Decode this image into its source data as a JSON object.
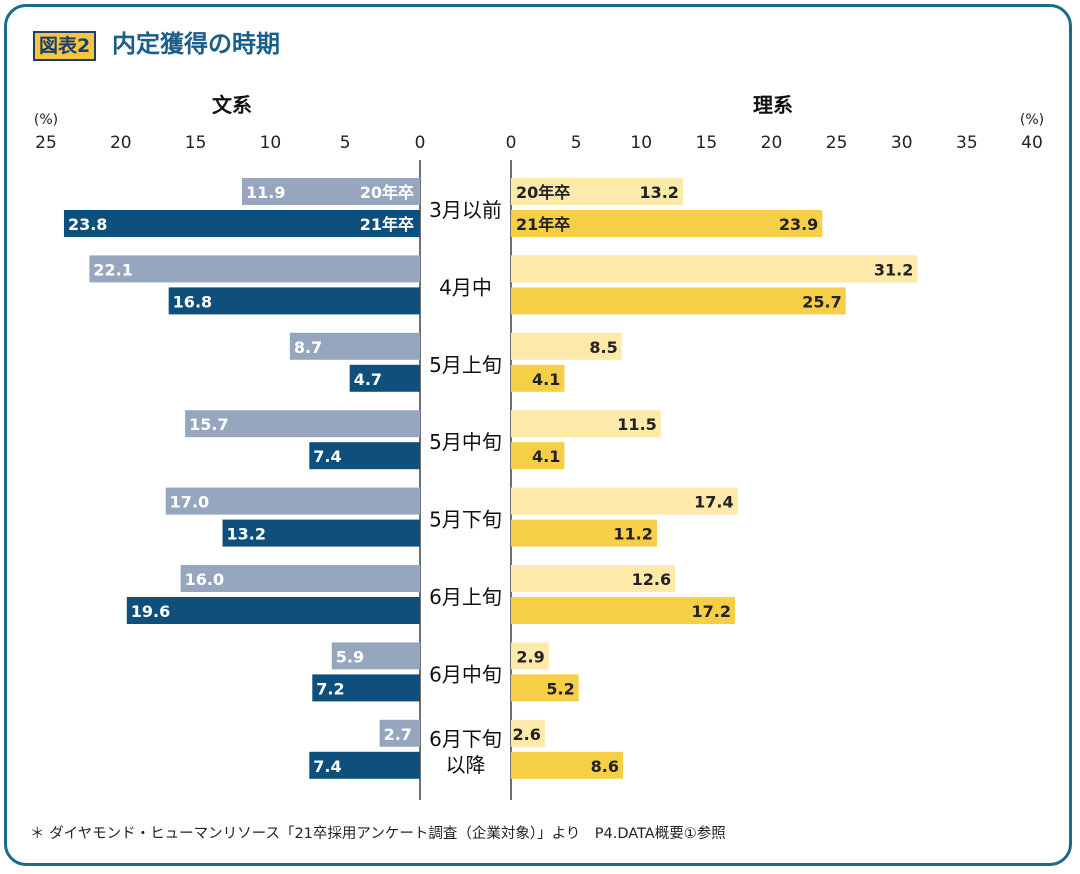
{
  "header": {
    "tag": "図表2",
    "title": "内定獲得の時期"
  },
  "footnote": "＊ ダイヤモンド・ヒューマンリソース「21卒採用アンケート調査（企業対象）」より　P4.DATA概要①参照",
  "colors": {
    "frame": "#1a6a8c",
    "bunkei_20": "#97a6bf",
    "bunkei_21": "#0e4f7c",
    "rikei_20": "#fde9a9",
    "rikei_21": "#f7cf47"
  },
  "chart_data": {
    "type": "bar",
    "orientation": "horizontal-butterfly",
    "unit_label": "(%)",
    "categories": [
      "3月以前",
      "4月中",
      "5月上旬",
      "5月中旬",
      "5月下旬",
      "6月上旬",
      "6月中旬",
      "6月下旬\n以降"
    ],
    "panels": [
      {
        "name": "文系",
        "direction": "left",
        "xlim": [
          0,
          25
        ],
        "ticks": [
          0,
          5,
          10,
          15,
          20,
          25
        ],
        "series": [
          {
            "name": "20年卒",
            "values": [
              11.9,
              22.1,
              8.7,
              15.7,
              17.0,
              16.0,
              5.9,
              2.7
            ]
          },
          {
            "name": "21年卒",
            "values": [
              23.8,
              16.8,
              4.7,
              7.4,
              13.2,
              19.6,
              7.2,
              7.4
            ]
          }
        ]
      },
      {
        "name": "理系",
        "direction": "right",
        "xlim": [
          0,
          40
        ],
        "ticks": [
          0,
          5,
          10,
          15,
          20,
          25,
          30,
          35,
          40
        ],
        "series": [
          {
            "name": "20年卒",
            "values": [
              13.2,
              31.2,
              8.5,
              11.5,
              17.4,
              12.6,
              2.9,
              2.6
            ]
          },
          {
            "name": "21年卒",
            "values": [
              23.9,
              25.7,
              4.1,
              4.1,
              11.2,
              17.2,
              5.2,
              8.6
            ]
          }
        ]
      }
    ]
  }
}
